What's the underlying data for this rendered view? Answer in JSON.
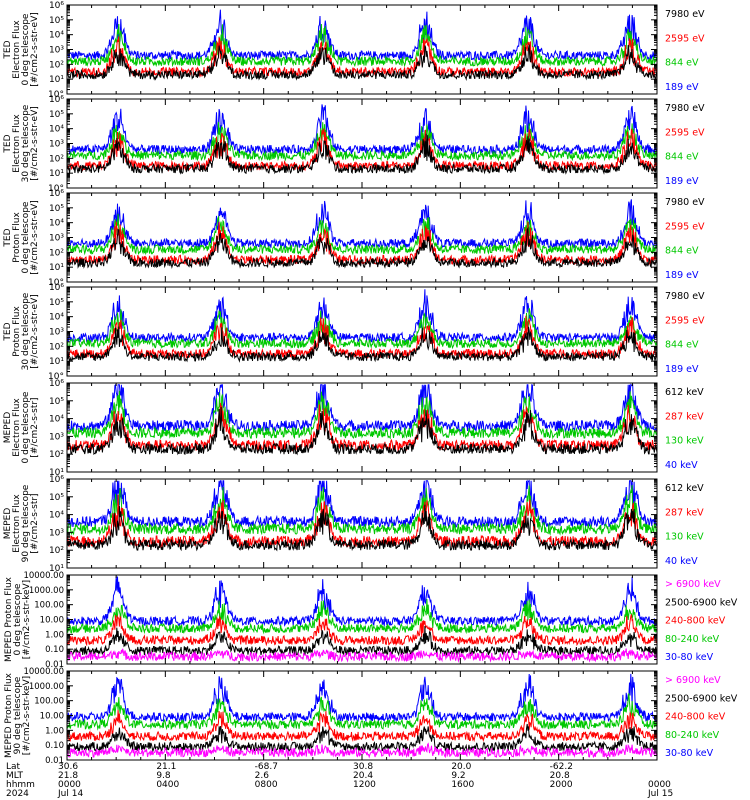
{
  "chart_data": [
    {
      "type": "line",
      "ylabel": [
        "TED",
        "Electron Flux",
        "0 deg telescope",
        "[#/cm2-s-str-eV]"
      ],
      "yscale": "log",
      "ylim": [
        1,
        1000000
      ],
      "yticks": [
        "10°",
        "10¹",
        "10²",
        "10³",
        "10⁴",
        "10⁵",
        "10⁶"
      ],
      "series": [
        {
          "name": "7980 eV",
          "color": "#000000"
        },
        {
          "name": "2595 eV",
          "color": "#ff0000"
        },
        {
          "name": "844 eV",
          "color": "#00c800"
        },
        {
          "name": "189 eV",
          "color": "#0000ff"
        }
      ]
    },
    {
      "type": "line",
      "ylabel": [
        "TED",
        "Electron Flux",
        "30 deg telescope",
        "[#/cm2-s-str-eV]"
      ],
      "yscale": "log",
      "ylim": [
        1,
        1000000
      ],
      "yticks": [
        "10°",
        "10¹",
        "10²",
        "10³",
        "10⁴",
        "10⁵",
        "10⁶"
      ],
      "series": [
        {
          "name": "7980 eV",
          "color": "#000000"
        },
        {
          "name": "2595 eV",
          "color": "#ff0000"
        },
        {
          "name": "844 eV",
          "color": "#00c800"
        },
        {
          "name": "189 eV",
          "color": "#0000ff"
        }
      ]
    },
    {
      "type": "line",
      "ylabel": [
        "TED",
        "Proton Flux",
        "0 deg telescope",
        "[#/cm2-s-str-eV]"
      ],
      "yscale": "log",
      "ylim": [
        1,
        1000000
      ],
      "yticks": [
        "10°",
        "10¹",
        "10²",
        "10³",
        "10⁴",
        "10⁵",
        "10⁶"
      ],
      "series": [
        {
          "name": "7980 eV",
          "color": "#000000"
        },
        {
          "name": "2595 eV",
          "color": "#ff0000"
        },
        {
          "name": "844 eV",
          "color": "#00c800"
        },
        {
          "name": "189 eV",
          "color": "#0000ff"
        }
      ]
    },
    {
      "type": "line",
      "ylabel": [
        "TED",
        "Proton Flux",
        "30 deg telescope",
        "[#/cm2-s-str-eV]"
      ],
      "yscale": "log",
      "ylim": [
        1,
        1000000
      ],
      "yticks": [
        "10°",
        "10¹",
        "10²",
        "10³",
        "10⁴",
        "10⁵",
        "10⁶"
      ],
      "series": [
        {
          "name": "7980 eV",
          "color": "#000000"
        },
        {
          "name": "2595 eV",
          "color": "#ff0000"
        },
        {
          "name": "844 eV",
          "color": "#00c800"
        },
        {
          "name": "189 eV",
          "color": "#0000ff"
        }
      ]
    },
    {
      "type": "line",
      "ylabel": [
        "MEPED",
        "Electron Flux",
        "0 deg telescope",
        "[#/cm2-s-str]"
      ],
      "yscale": "log",
      "ylim": [
        10,
        1000000
      ],
      "yticks": [
        "10¹",
        "10²",
        "10³",
        "10⁴",
        "10⁵",
        "10⁶"
      ],
      "series": [
        {
          "name": "612 keV",
          "color": "#000000"
        },
        {
          "name": "287 keV",
          "color": "#ff0000"
        },
        {
          "name": "130 keV",
          "color": "#00c800"
        },
        {
          "name": "40 keV",
          "color": "#0000ff"
        }
      ]
    },
    {
      "type": "line",
      "ylabel": [
        "MEPED",
        "Electron Flux",
        "90 deg telescope",
        "[#/cm2-s-str]"
      ],
      "yscale": "log",
      "ylim": [
        10,
        1000000
      ],
      "yticks": [
        "10¹",
        "10²",
        "10³",
        "10⁴",
        "10⁵",
        "10⁶"
      ],
      "series": [
        {
          "name": "612 keV",
          "color": "#000000"
        },
        {
          "name": "287 keV",
          "color": "#ff0000"
        },
        {
          "name": "130 keV",
          "color": "#00c800"
        },
        {
          "name": "40 keV",
          "color": "#0000ff"
        }
      ]
    },
    {
      "type": "line",
      "ylabel": [
        "MEPED Proton Flux",
        "0 deg telescope",
        "[#/cm2-s-str-keV]"
      ],
      "yscale": "log",
      "ylim": [
        0.01,
        10000
      ],
      "yticks": [
        "0.01",
        "0.10",
        "1.00",
        "10.00",
        "100.00",
        "1000.00",
        "10000.00"
      ],
      "series": [
        {
          "name": "> 6900 keV",
          "color": "#ff00ff"
        },
        {
          "name": "2500-6900 keV",
          "color": "#000000"
        },
        {
          "name": "240-800 keV",
          "color": "#ff0000"
        },
        {
          "name": "80-240 keV",
          "color": "#00c800"
        },
        {
          "name": "30-80 keV",
          "color": "#0000ff"
        }
      ]
    },
    {
      "type": "line",
      "ylabel": [
        "MEPED Proton Flux",
        "90 deg telescope",
        "[#/cm2-s-str-keV]"
      ],
      "yscale": "log",
      "ylim": [
        0.01,
        10000
      ],
      "yticks": [
        "0.01",
        "0.10",
        "1.00",
        "10.00",
        "100.00",
        "1000.00",
        "10000.00"
      ],
      "series": [
        {
          "name": "> 6900 keV",
          "color": "#ff00ff"
        },
        {
          "name": "2500-6900 keV",
          "color": "#000000"
        },
        {
          "name": "240-800 keV",
          "color": "#ff0000"
        },
        {
          "name": "80-240 keV",
          "color": "#00c800"
        },
        {
          "name": "30-80 keV",
          "color": "#0000ff"
        }
      ]
    }
  ],
  "x_axis": {
    "xlim_hours": [
      0,
      24
    ],
    "row_labels": [
      "Lat",
      "MLT",
      "hhmm",
      "2024"
    ],
    "ticks": [
      {
        "hour": 0,
        "lat": "30.6",
        "mlt": "21.8",
        "hhmm": "0000",
        "date": "Jul 14"
      },
      {
        "hour": 4,
        "lat": "21.1",
        "mlt": "9.8",
        "hhmm": "0400",
        "date": ""
      },
      {
        "hour": 8,
        "lat": "-68.7",
        "mlt": "2.6",
        "hhmm": "0800",
        "date": ""
      },
      {
        "hour": 12,
        "lat": "30.8",
        "mlt": "20.4",
        "hhmm": "1200",
        "date": ""
      },
      {
        "hour": 16,
        "lat": "20.0",
        "mlt": "9.2",
        "hhmm": "1600",
        "date": ""
      },
      {
        "hour": 20,
        "lat": "-62.2",
        "mlt": "20.8",
        "hhmm": "2000",
        "date": ""
      },
      {
        "hour": 24,
        "lat": "",
        "mlt": "",
        "hhmm": "0000",
        "date": "Jul 15"
      }
    ]
  }
}
